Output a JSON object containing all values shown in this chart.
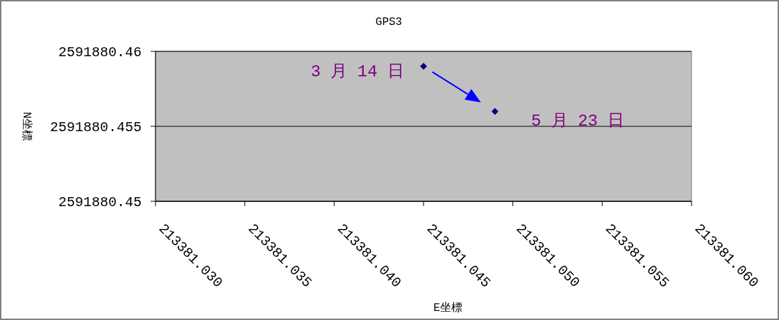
{
  "chart_data": {
    "type": "scatter",
    "title": "GPS3",
    "xlabel": "E坐標",
    "ylabel": "N坐標",
    "x": [
      213381.045,
      213381.049
    ],
    "series": [
      {
        "color": "#000080",
        "values": [
          2591880.459,
          2591880.456
        ]
      }
    ],
    "marker": "diamond",
    "grid": "y",
    "xlim": [
      213381.03,
      213381.06
    ],
    "xticks": [
      {
        "value": 213381.03,
        "label": "213381.030"
      },
      {
        "value": 213381.035,
        "label": "213381.035"
      },
      {
        "value": 213381.04,
        "label": "213381.040"
      },
      {
        "value": 213381.045,
        "label": "213381.045"
      },
      {
        "value": 213381.05,
        "label": "213381.050"
      },
      {
        "value": 213381.055,
        "label": "213381.055"
      },
      {
        "value": 213381.06,
        "label": "213381.060"
      }
    ],
    "ylim": [
      2591880.45,
      2591880.46
    ],
    "yticks": [
      2591880.45,
      2591880.455,
      2591880.46
    ],
    "annotations": [
      {
        "text": "3 月 14 日",
        "x": 213381.045,
        "y": 2591880.459
      },
      {
        "text": "5 月 23 日",
        "x": 213381.049,
        "y": 2591880.456
      }
    ]
  }
}
